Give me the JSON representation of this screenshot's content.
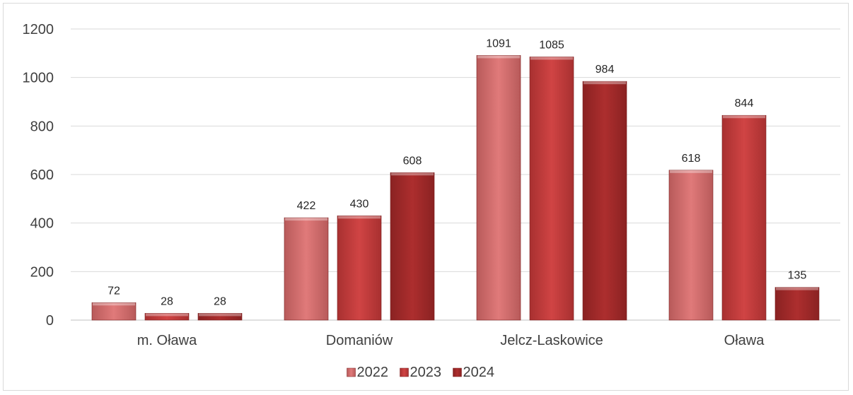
{
  "chart_data": {
    "type": "bar",
    "title": "",
    "xlabel": "",
    "ylabel": "",
    "categories": [
      "m. Oława",
      "Domaniów",
      "Jelcz-Laskowice",
      "Oława"
    ],
    "series": [
      {
        "name": "2022",
        "values": [
          72,
          422,
          1091,
          618
        ],
        "color": "#d97171"
      },
      {
        "name": "2023",
        "values": [
          28,
          430,
          1085,
          844
        ],
        "color": "#c93b3b"
      },
      {
        "name": "2024",
        "values": [
          28,
          608,
          984,
          135
        ],
        "color": "#a42a2a"
      }
    ],
    "ylim": [
      0,
      1200
    ],
    "yticks": [
      0,
      200,
      400,
      600,
      800,
      1000,
      1200
    ],
    "grid": true,
    "legend_position": "bottom"
  }
}
